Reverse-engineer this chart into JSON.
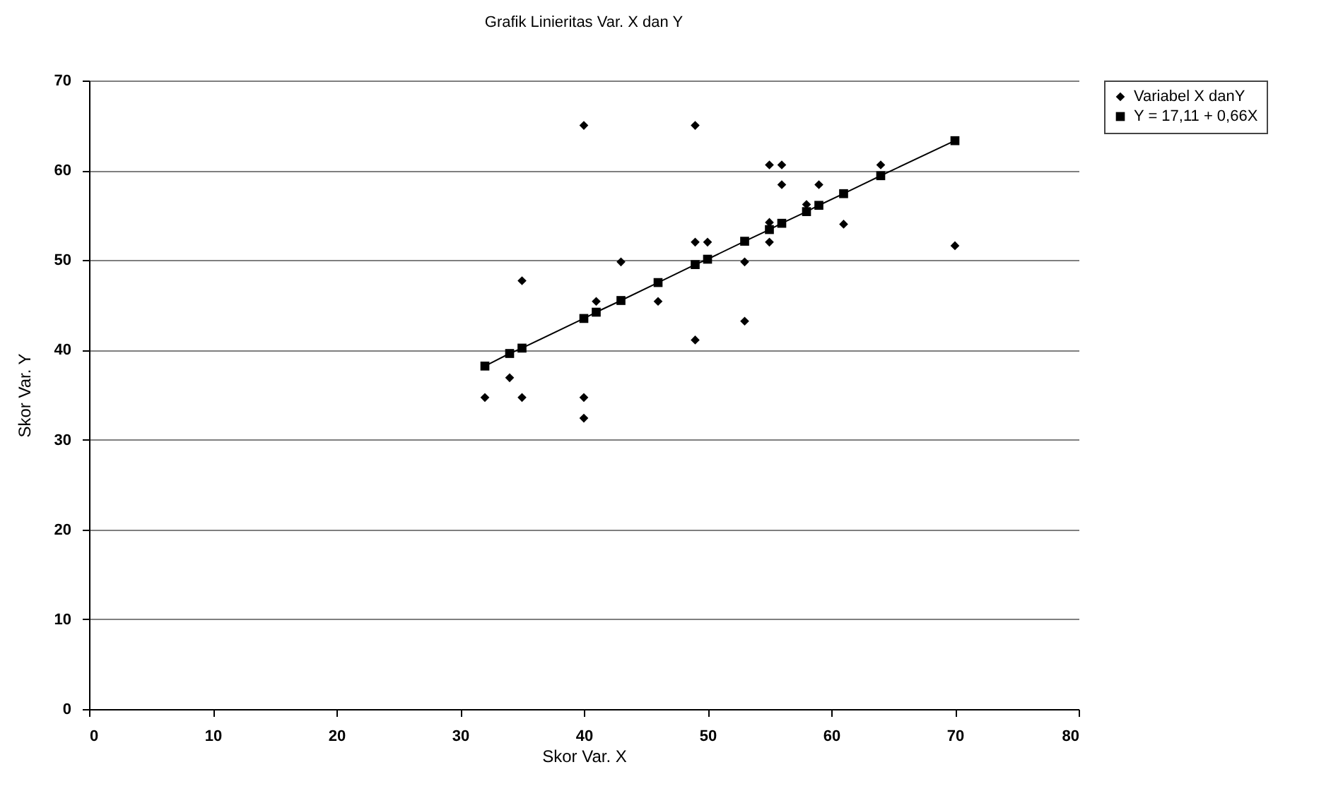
{
  "chart_data": {
    "type": "scatter",
    "title": "Grafik Linieritas Var. X dan Y",
    "xlabel": "Skor Var. X",
    "ylabel": "Skor Var. Y",
    "xlim": [
      0,
      80
    ],
    "xticks": [
      0,
      10,
      20,
      30,
      40,
      50,
      60,
      70,
      80
    ],
    "ylim": [
      0,
      70
    ],
    "yticks": [
      0,
      10,
      20,
      30,
      40,
      50,
      60,
      70
    ],
    "grid": "y",
    "legend": "right",
    "series": [
      {
        "name": "Variabel X danY",
        "marker": "diamond",
        "color": "#000000",
        "x": [
          40,
          49,
          35,
          41,
          43,
          46,
          49,
          50,
          53,
          53,
          49,
          32,
          34,
          35,
          40,
          40,
          55,
          56,
          56,
          59,
          64,
          58,
          55,
          55,
          61,
          70
        ],
        "values": [
          65,
          65,
          47.7,
          45.4,
          49.8,
          45.4,
          52,
          52,
          49.8,
          43.2,
          41.1,
          34.7,
          36.9,
          34.7,
          34.7,
          32.4,
          60.6,
          60.6,
          58.4,
          58.4,
          60.6,
          56.2,
          54.2,
          52,
          54,
          51.6
        ]
      },
      {
        "name": "Y = 17,11 + 0,66X",
        "type": "line",
        "marker": "square",
        "color": "#000000",
        "x": [
          32,
          34,
          35,
          40,
          41,
          43,
          46,
          49,
          50,
          53,
          55,
          56,
          58,
          59,
          61,
          64,
          70
        ],
        "values": [
          38.2,
          39.6,
          40.2,
          43.5,
          44.2,
          45.5,
          47.5,
          49.5,
          50.1,
          52.1,
          53.4,
          54.1,
          55.4,
          56.1,
          57.4,
          59.4,
          63.3
        ]
      }
    ]
  }
}
